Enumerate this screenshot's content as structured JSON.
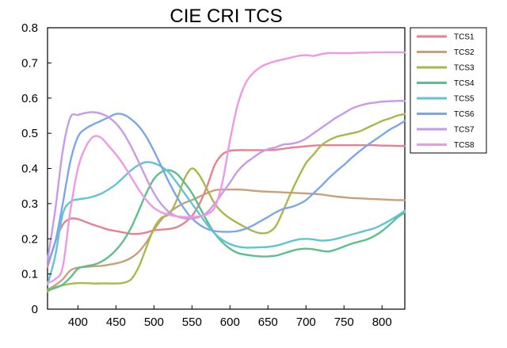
{
  "chart_data": {
    "type": "line",
    "title": "CIE CRI TCS",
    "xlabel": "",
    "ylabel": "",
    "xlim": [
      360,
      830
    ],
    "ylim": [
      0,
      0.8
    ],
    "xticks": [
      400,
      450,
      500,
      550,
      600,
      650,
      700,
      750,
      800
    ],
    "yticks": [
      0,
      0.1,
      0.2,
      0.3,
      0.4,
      0.5,
      0.6,
      0.7,
      0.8
    ],
    "grid": false,
    "legend_position": "top-right, outside plot",
    "x": [
      360,
      370,
      380,
      390,
      400,
      410,
      420,
      430,
      440,
      450,
      460,
      470,
      480,
      490,
      500,
      510,
      520,
      530,
      540,
      550,
      560,
      570,
      580,
      590,
      600,
      610,
      620,
      630,
      640,
      650,
      660,
      670,
      680,
      690,
      700,
      710,
      720,
      730,
      740,
      750,
      760,
      770,
      780,
      790,
      800,
      810,
      820,
      830
    ],
    "series": [
      {
        "name": "TCS1",
        "color": "#e8818f",
        "values": [
          0.12,
          0.19,
          0.24,
          0.257,
          0.256,
          0.248,
          0.24,
          0.233,
          0.226,
          0.222,
          0.218,
          0.214,
          0.214,
          0.218,
          0.224,
          0.226,
          0.228,
          0.233,
          0.245,
          0.265,
          0.3,
          0.35,
          0.41,
          0.44,
          0.45,
          0.452,
          0.452,
          0.452,
          0.452,
          0.452,
          0.453,
          0.456,
          0.459,
          0.461,
          0.463,
          0.465,
          0.466,
          0.466,
          0.466,
          0.466,
          0.466,
          0.466,
          0.466,
          0.466,
          0.465,
          0.465,
          0.464,
          0.464
        ]
      },
      {
        "name": "TCS2",
        "color": "#c9a07a",
        "values": [
          0.055,
          0.068,
          0.085,
          0.11,
          0.118,
          0.12,
          0.122,
          0.123,
          0.126,
          0.13,
          0.136,
          0.146,
          0.163,
          0.19,
          0.225,
          0.255,
          0.275,
          0.29,
          0.302,
          0.31,
          0.32,
          0.33,
          0.338,
          0.34,
          0.34,
          0.34,
          0.339,
          0.337,
          0.335,
          0.334,
          0.333,
          0.332,
          0.331,
          0.33,
          0.329,
          0.328,
          0.326,
          0.323,
          0.32,
          0.318,
          0.316,
          0.315,
          0.314,
          0.313,
          0.312,
          0.311,
          0.31,
          0.31
        ]
      },
      {
        "name": "TCS3",
        "color": "#aab84a",
        "values": [
          0.05,
          0.062,
          0.068,
          0.072,
          0.074,
          0.074,
          0.073,
          0.073,
          0.073,
          0.073,
          0.075,
          0.085,
          0.12,
          0.175,
          0.23,
          0.26,
          0.27,
          0.31,
          0.37,
          0.4,
          0.38,
          0.34,
          0.3,
          0.275,
          0.258,
          0.245,
          0.233,
          0.222,
          0.216,
          0.218,
          0.235,
          0.28,
          0.33,
          0.375,
          0.415,
          0.44,
          0.465,
          0.48,
          0.49,
          0.495,
          0.5,
          0.505,
          0.515,
          0.525,
          0.535,
          0.542,
          0.55,
          0.555
        ]
      },
      {
        "name": "TCS4",
        "color": "#5cbf8c",
        "values": [
          0.055,
          0.06,
          0.07,
          0.09,
          0.115,
          0.122,
          0.126,
          0.134,
          0.148,
          0.168,
          0.195,
          0.232,
          0.28,
          0.33,
          0.37,
          0.39,
          0.395,
          0.385,
          0.36,
          0.33,
          0.29,
          0.25,
          0.215,
          0.19,
          0.172,
          0.16,
          0.155,
          0.152,
          0.15,
          0.15,
          0.152,
          0.158,
          0.165,
          0.17,
          0.172,
          0.17,
          0.166,
          0.164,
          0.17,
          0.178,
          0.186,
          0.192,
          0.198,
          0.208,
          0.222,
          0.24,
          0.26,
          0.275
        ]
      },
      {
        "name": "TCS5",
        "color": "#63c3d6",
        "values": [
          0.07,
          0.15,
          0.27,
          0.305,
          0.312,
          0.315,
          0.32,
          0.328,
          0.34,
          0.355,
          0.375,
          0.395,
          0.41,
          0.418,
          0.415,
          0.405,
          0.388,
          0.36,
          0.33,
          0.3,
          0.27,
          0.24,
          0.215,
          0.197,
          0.185,
          0.178,
          0.175,
          0.175,
          0.176,
          0.177,
          0.18,
          0.186,
          0.193,
          0.198,
          0.2,
          0.198,
          0.195,
          0.196,
          0.2,
          0.206,
          0.212,
          0.218,
          0.224,
          0.23,
          0.24,
          0.252,
          0.265,
          0.28
        ]
      },
      {
        "name": "TCS6",
        "color": "#7ba7e6",
        "values": [
          0.13,
          0.19,
          0.3,
          0.42,
          0.49,
          0.513,
          0.525,
          0.535,
          0.545,
          0.555,
          0.553,
          0.54,
          0.52,
          0.49,
          0.45,
          0.405,
          0.36,
          0.32,
          0.285,
          0.258,
          0.24,
          0.228,
          0.222,
          0.22,
          0.22,
          0.222,
          0.228,
          0.238,
          0.25,
          0.262,
          0.275,
          0.285,
          0.29,
          0.298,
          0.31,
          0.33,
          0.35,
          0.372,
          0.392,
          0.41,
          0.43,
          0.448,
          0.465,
          0.48,
          0.495,
          0.51,
          0.522,
          0.535
        ]
      },
      {
        "name": "TCS7",
        "color": "#c99ae6",
        "values": [
          0.14,
          0.28,
          0.45,
          0.545,
          0.552,
          0.558,
          0.56,
          0.556,
          0.546,
          0.528,
          0.5,
          0.462,
          0.418,
          0.372,
          0.33,
          0.298,
          0.276,
          0.264,
          0.258,
          0.258,
          0.262,
          0.275,
          0.3,
          0.33,
          0.36,
          0.392,
          0.414,
          0.43,
          0.445,
          0.455,
          0.46,
          0.468,
          0.47,
          0.475,
          0.485,
          0.5,
          0.515,
          0.53,
          0.545,
          0.557,
          0.57,
          0.578,
          0.584,
          0.587,
          0.59,
          0.591,
          0.592,
          0.592
        ]
      },
      {
        "name": "TCS8",
        "color": "#ee99e4",
        "values": [
          0.075,
          0.085,
          0.12,
          0.28,
          0.4,
          0.46,
          0.49,
          0.488,
          0.465,
          0.44,
          0.41,
          0.375,
          0.34,
          0.31,
          0.288,
          0.275,
          0.268,
          0.264,
          0.262,
          0.262,
          0.264,
          0.27,
          0.29,
          0.36,
          0.48,
          0.58,
          0.64,
          0.67,
          0.688,
          0.698,
          0.705,
          0.71,
          0.715,
          0.72,
          0.722,
          0.72,
          0.725,
          0.728,
          0.728,
          0.728,
          0.728,
          0.729,
          0.729,
          0.73,
          0.73,
          0.73,
          0.73,
          0.73
        ]
      }
    ]
  }
}
